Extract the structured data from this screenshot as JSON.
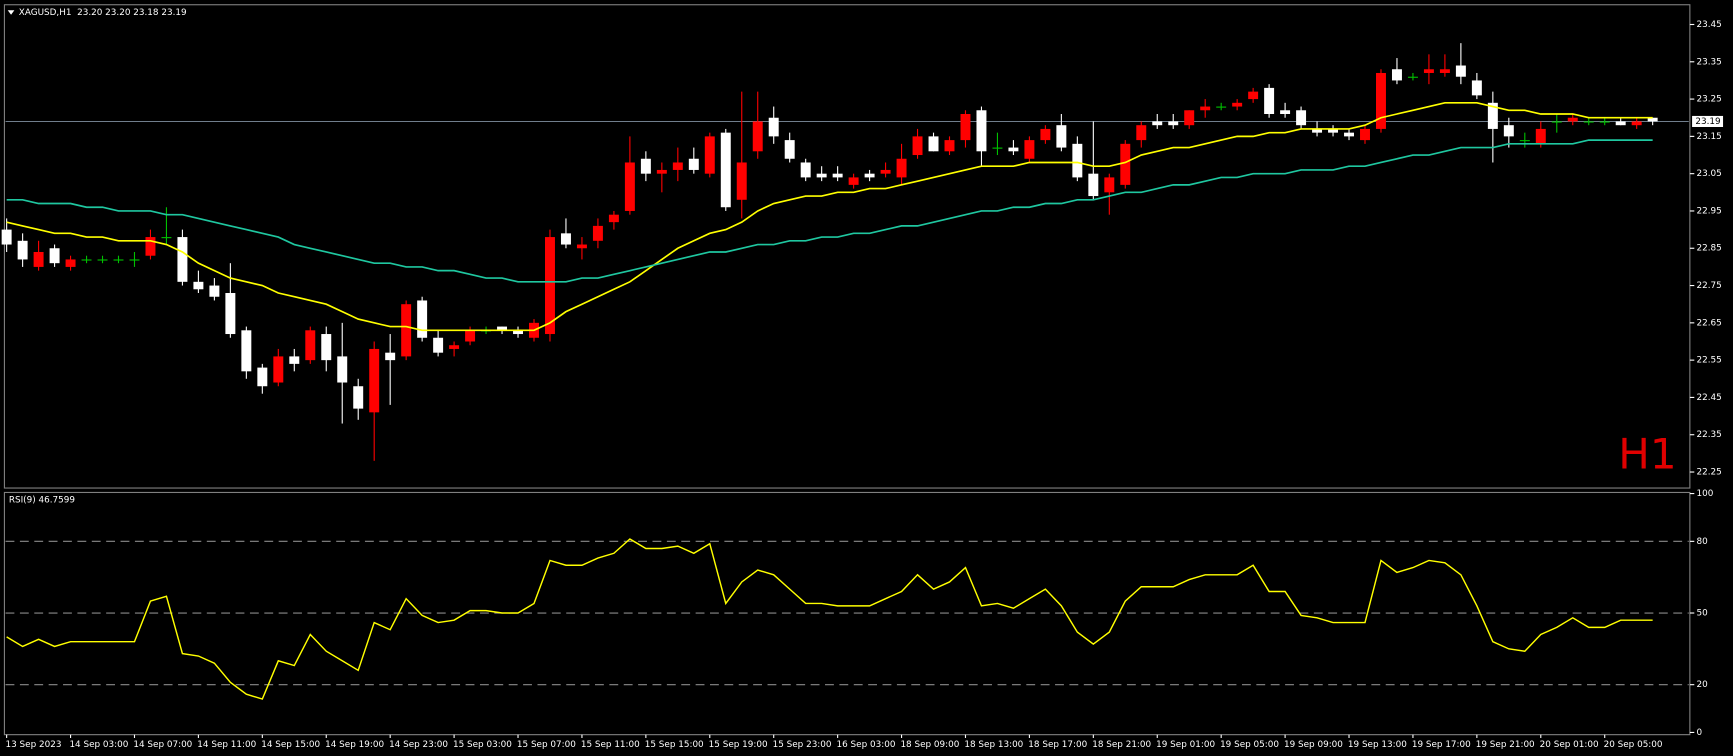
{
  "chart_data": [
    {
      "type": "candlestick",
      "title": "XAGUSD,H1  23.20 23.20 23.18 23.19",
      "annotation": "H1",
      "categories": [
        "13 Sep 2023",
        null,
        null,
        null,
        "14 Sep 03:00",
        null,
        null,
        null,
        "14 Sep 07:00",
        null,
        null,
        null,
        "14 Sep 11:00",
        null,
        null,
        null,
        "14 Sep 15:00",
        null,
        null,
        null,
        "14 Sep 19:00",
        null,
        null,
        null,
        "14 Sep 23:00",
        null,
        null,
        null,
        "15 Sep 03:00",
        null,
        null,
        null,
        "15 Sep 07:00",
        null,
        null,
        null,
        "15 Sep 11:00",
        null,
        null,
        null,
        "15 Sep 15:00",
        null,
        null,
        null,
        "15 Sep 19:00",
        null,
        null,
        null,
        "15 Sep 23:00",
        null,
        null,
        null,
        "16 Sep 03:00",
        null,
        null,
        null,
        "18 Sep 09:00",
        null,
        null,
        null,
        "18 Sep 13:00",
        null,
        null,
        null,
        "18 Sep 17:00",
        null,
        null,
        null,
        "18 Sep 21:00",
        null,
        null,
        null,
        "19 Sep 01:00",
        null,
        null,
        null,
        "19 Sep 05:00",
        null,
        null,
        null,
        "19 Sep 09:00",
        null,
        null,
        null,
        "19 Sep 13:00",
        null,
        null,
        null,
        "19 Sep 17:00",
        null,
        null,
        null,
        "19 Sep 21:00",
        null,
        null,
        null,
        "20 Sep 01:00",
        null,
        null,
        null,
        "20 Sep 05:00",
        null,
        null,
        null
      ],
      "open": [
        22.9,
        22.87,
        22.8,
        22.85,
        22.8,
        22.82,
        22.82,
        22.82,
        22.82,
        22.83,
        22.88,
        22.88,
        22.76,
        22.75,
        22.73,
        22.63,
        22.53,
        22.49,
        22.56,
        22.55,
        22.62,
        22.56,
        22.48,
        22.41,
        22.57,
        22.56,
        22.71,
        22.61,
        22.58,
        22.6,
        22.63,
        22.64,
        22.63,
        22.61,
        22.62,
        22.89,
        22.85,
        22.87,
        22.92,
        22.95,
        23.09,
        23.05,
        23.06,
        23.09,
        23.05,
        23.16,
        22.98,
        23.11,
        23.2,
        23.14,
        23.08,
        23.05,
        23.05,
        23.02,
        23.05,
        23.05,
        23.04,
        23.1,
        23.15,
        23.11,
        23.14,
        23.22,
        23.12,
        23.12,
        23.09,
        23.14,
        23.18,
        23.13,
        23.05,
        23.0,
        23.02,
        23.14,
        23.19,
        23.19,
        23.18,
        23.22,
        23.23,
        23.23,
        23.25,
        23.28,
        23.22,
        23.22,
        23.17,
        23.17,
        23.16,
        23.14,
        23.17,
        23.33,
        23.31,
        23.32,
        23.32,
        23.34,
        23.3,
        23.24,
        23.18,
        23.14,
        23.13,
        23.19,
        23.19,
        23.19,
        23.19,
        23.19,
        23.18,
        23.2
      ],
      "high": [
        22.93,
        22.89,
        22.87,
        22.86,
        22.83,
        22.83,
        22.83,
        22.83,
        22.84,
        22.9,
        22.96,
        22.9,
        22.79,
        22.77,
        22.81,
        22.64,
        22.54,
        22.58,
        22.58,
        22.64,
        22.64,
        22.65,
        22.5,
        22.6,
        22.62,
        22.71,
        22.72,
        22.63,
        22.6,
        22.64,
        22.64,
        22.64,
        22.64,
        22.66,
        22.9,
        22.93,
        22.88,
        22.93,
        22.95,
        23.15,
        23.11,
        23.08,
        23.12,
        23.12,
        23.16,
        23.17,
        23.27,
        23.27,
        23.23,
        23.16,
        23.09,
        23.07,
        23.07,
        23.05,
        23.06,
        23.08,
        23.13,
        23.17,
        23.16,
        23.15,
        23.22,
        23.23,
        23.16,
        23.14,
        23.15,
        23.18,
        23.21,
        23.15,
        23.19,
        23.05,
        23.14,
        23.19,
        23.21,
        23.21,
        23.22,
        23.25,
        23.24,
        23.25,
        23.28,
        23.29,
        23.24,
        23.23,
        23.19,
        23.18,
        23.17,
        23.18,
        23.33,
        23.36,
        23.32,
        23.37,
        23.37,
        23.4,
        23.32,
        23.27,
        23.2,
        23.16,
        23.19,
        23.21,
        23.21,
        23.2,
        23.2,
        23.2,
        23.2,
        23.2
      ],
      "low": [
        22.84,
        22.8,
        22.79,
        22.8,
        22.79,
        22.81,
        22.81,
        22.81,
        22.8,
        22.82,
        22.86,
        22.75,
        22.73,
        22.71,
        22.61,
        22.5,
        22.46,
        22.48,
        22.52,
        22.54,
        22.52,
        22.38,
        22.39,
        22.28,
        22.43,
        22.55,
        22.6,
        22.56,
        22.56,
        22.59,
        22.62,
        22.62,
        22.61,
        22.6,
        22.6,
        22.85,
        22.82,
        22.85,
        22.9,
        22.94,
        23.03,
        23.0,
        23.03,
        23.05,
        23.04,
        22.95,
        22.93,
        23.09,
        23.13,
        23.08,
        23.03,
        23.03,
        23.03,
        23.01,
        23.03,
        23.04,
        23.02,
        23.09,
        23.11,
        23.1,
        23.12,
        23.07,
        23.1,
        23.1,
        23.08,
        23.13,
        23.11,
        23.03,
        22.98,
        22.94,
        23.01,
        23.12,
        23.17,
        23.17,
        23.17,
        23.2,
        23.22,
        23.22,
        23.24,
        23.2,
        23.2,
        23.17,
        23.15,
        23.15,
        23.14,
        23.13,
        23.16,
        23.29,
        23.3,
        23.29,
        23.31,
        23.29,
        23.25,
        23.08,
        23.12,
        23.12,
        23.12,
        23.16,
        23.18,
        23.18,
        23.18,
        23.18,
        23.17,
        23.18
      ],
      "close": [
        22.86,
        22.82,
        22.84,
        22.81,
        22.82,
        22.82,
        22.82,
        22.82,
        22.82,
        22.88,
        22.88,
        22.76,
        22.74,
        22.72,
        22.62,
        22.52,
        22.48,
        22.56,
        22.54,
        22.63,
        22.55,
        22.49,
        22.42,
        22.58,
        22.55,
        22.7,
        22.61,
        22.57,
        22.59,
        22.63,
        22.63,
        22.63,
        22.62,
        22.65,
        22.88,
        22.86,
        22.86,
        22.91,
        22.94,
        23.08,
        23.05,
        23.06,
        23.08,
        23.06,
        23.15,
        22.96,
        23.08,
        23.19,
        23.15,
        23.09,
        23.04,
        23.04,
        23.04,
        23.04,
        23.04,
        23.06,
        23.09,
        23.15,
        23.11,
        23.14,
        23.21,
        23.11,
        23.12,
        23.11,
        23.14,
        23.17,
        23.12,
        23.04,
        22.99,
        23.04,
        23.13,
        23.18,
        23.18,
        23.18,
        23.22,
        23.23,
        23.23,
        23.24,
        23.27,
        23.21,
        23.21,
        23.18,
        23.16,
        23.16,
        23.15,
        23.17,
        23.32,
        23.3,
        23.31,
        23.33,
        23.33,
        23.31,
        23.26,
        23.17,
        23.15,
        23.14,
        23.17,
        23.19,
        23.2,
        23.19,
        23.19,
        23.18,
        23.19,
        23.19
      ],
      "up_color": "#ff0000",
      "down_color": "#ffffff",
      "doji_color": "#00c000",
      "series": [
        {
          "color": "#ffff00",
          "values": [
            22.92,
            22.91,
            22.9,
            22.89,
            22.89,
            22.88,
            22.88,
            22.87,
            22.87,
            22.87,
            22.86,
            22.84,
            22.81,
            22.79,
            22.77,
            22.76,
            22.75,
            22.73,
            22.72,
            22.71,
            22.7,
            22.68,
            22.66,
            22.65,
            22.64,
            22.64,
            22.63,
            22.63,
            22.63,
            22.63,
            22.63,
            22.63,
            22.63,
            22.63,
            22.65,
            22.68,
            22.7,
            22.72,
            22.74,
            22.76,
            22.79,
            22.82,
            22.85,
            22.87,
            22.89,
            22.9,
            22.92,
            22.95,
            22.97,
            22.98,
            22.99,
            22.99,
            23.0,
            23.0,
            23.01,
            23.01,
            23.02,
            23.03,
            23.04,
            23.05,
            23.06,
            23.07,
            23.07,
            23.07,
            23.08,
            23.08,
            23.08,
            23.08,
            23.07,
            23.07,
            23.08,
            23.1,
            23.11,
            23.12,
            23.12,
            23.13,
            23.14,
            23.15,
            23.15,
            23.16,
            23.16,
            23.17,
            23.17,
            23.17,
            23.17,
            23.18,
            23.2,
            23.21,
            23.22,
            23.23,
            23.24,
            23.24,
            23.24,
            23.23,
            23.22,
            23.22,
            23.21,
            23.21,
            23.21,
            23.2,
            23.2,
            23.2,
            23.2,
            23.2
          ]
        },
        {
          "color": "#1fc7a0",
          "values": [
            22.98,
            22.98,
            22.97,
            22.97,
            22.97,
            22.96,
            22.96,
            22.95,
            22.95,
            22.95,
            22.94,
            22.94,
            22.93,
            22.92,
            22.91,
            22.9,
            22.89,
            22.88,
            22.86,
            22.85,
            22.84,
            22.83,
            22.82,
            22.81,
            22.81,
            22.8,
            22.8,
            22.79,
            22.79,
            22.78,
            22.77,
            22.77,
            22.76,
            22.76,
            22.76,
            22.76,
            22.77,
            22.77,
            22.78,
            22.79,
            22.8,
            22.81,
            22.82,
            22.83,
            22.84,
            22.84,
            22.85,
            22.86,
            22.86,
            22.87,
            22.87,
            22.88,
            22.88,
            22.89,
            22.89,
            22.9,
            22.91,
            22.91,
            22.92,
            22.93,
            22.94,
            22.95,
            22.95,
            22.96,
            22.96,
            22.97,
            22.97,
            22.98,
            22.98,
            22.99,
            23.0,
            23.0,
            23.01,
            23.02,
            23.02,
            23.03,
            23.04,
            23.04,
            23.05,
            23.05,
            23.05,
            23.06,
            23.06,
            23.06,
            23.07,
            23.07,
            23.08,
            23.09,
            23.1,
            23.1,
            23.11,
            23.12,
            23.12,
            23.12,
            23.13,
            23.13,
            23.13,
            23.13,
            23.13,
            23.14,
            23.14,
            23.14,
            23.14,
            23.14
          ]
        }
      ],
      "current_price": 23.19,
      "ylim": [
        22.21,
        23.5
      ],
      "yticks": [
        22.25,
        22.35,
        22.45,
        22.55,
        22.65,
        22.75,
        22.85,
        22.95,
        23.05,
        23.15,
        23.25,
        23.35,
        23.45
      ],
      "grid": false
    },
    {
      "type": "line",
      "title": "RSI(9) 46.7599",
      "color": "#ffff00",
      "values": [
        40,
        36,
        39,
        36,
        38,
        38,
        38,
        38,
        38,
        55,
        57,
        33,
        32,
        29,
        21,
        16,
        14,
        30,
        28,
        41,
        34,
        30,
        26,
        46,
        43,
        56,
        49,
        46,
        47,
        51,
        51,
        50,
        50,
        54,
        72,
        70,
        70,
        73,
        75,
        81,
        77,
        77,
        78,
        75,
        79,
        54,
        63,
        68,
        66,
        60,
        54,
        54,
        53,
        53,
        53,
        56,
        59,
        66,
        60,
        63,
        69,
        53,
        54,
        52,
        56,
        60,
        53,
        42,
        37,
        42,
        55,
        61,
        61,
        61,
        64,
        66,
        66,
        66,
        70,
        59,
        59,
        49,
        48,
        46,
        46,
        46,
        72,
        67,
        69,
        72,
        71,
        66,
        53,
        38,
        35,
        34,
        41,
        44,
        48,
        44,
        44,
        47,
        47,
        47
      ],
      "ylim": [
        0,
        100
      ],
      "yticks": [
        0,
        20,
        50,
        80,
        100
      ],
      "grid": true
    }
  ]
}
